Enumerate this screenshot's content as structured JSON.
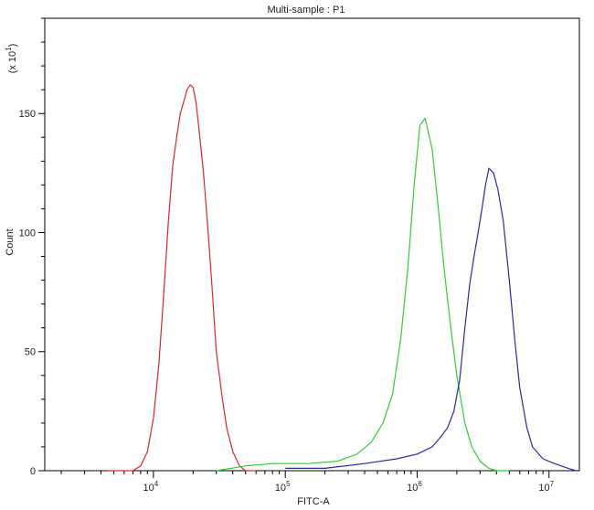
{
  "chart_data": {
    "type": "line",
    "title": "Multi-sample : P1",
    "xlabel": "FITC-A",
    "ylabel": "Count",
    "y_multiplier_label": "(x 10",
    "y_multiplier_exp": "1",
    "x_scale": "log",
    "xlim": [
      1500,
      17000000
    ],
    "ylim": [
      0,
      190
    ],
    "x_ticks": [
      {
        "value": 10000,
        "base": "10",
        "exp": "4"
      },
      {
        "value": 100000,
        "base": "10",
        "exp": "5"
      },
      {
        "value": 1000000,
        "base": "10",
        "exp": "6"
      },
      {
        "value": 10000000,
        "base": "10",
        "exp": "7"
      }
    ],
    "y_ticks": [
      0,
      50,
      100,
      150
    ],
    "y_tick_labels": [
      "0",
      "50",
      "100",
      "150"
    ],
    "grid": false,
    "series": [
      {
        "color": "#d42a2a",
        "x": [
          4500,
          7000,
          8000,
          9000,
          10000,
          11000,
          12000,
          13000,
          14000,
          15000,
          16000,
          17000,
          18000,
          19000,
          20000,
          21000,
          22000,
          24000,
          26000,
          28000,
          30000,
          33000,
          36000,
          40000,
          45000,
          50000,
          60000
        ],
        "values": [
          0,
          0,
          2,
          8,
          22,
          45,
          75,
          105,
          128,
          140,
          150,
          155,
          160,
          162,
          161,
          155,
          145,
          125,
          100,
          75,
          50,
          32,
          18,
          8,
          2,
          0,
          0
        ]
      },
      {
        "color": "#33cc33",
        "x": [
          30000,
          50000,
          80000,
          150000,
          250000,
          350000,
          450000,
          550000,
          650000,
          750000,
          850000,
          950000,
          1050000,
          1150000,
          1300000,
          1450000,
          1600000,
          1800000,
          2000000,
          2300000,
          2600000,
          3000000,
          3500000,
          4000000,
          5000000
        ],
        "values": [
          0,
          2,
          3,
          3,
          4,
          7,
          12,
          20,
          32,
          55,
          85,
          120,
          145,
          148,
          135,
          110,
          85,
          60,
          40,
          20,
          10,
          4,
          1,
          0,
          0
        ]
      },
      {
        "color": "#2b2ba0",
        "x": [
          100000,
          200000,
          400000,
          700000,
          1000000,
          1300000,
          1500000,
          1700000,
          1900000,
          2100000,
          2300000,
          2500000,
          2700000,
          2900000,
          3100000,
          3300000,
          3500000,
          3800000,
          4100000,
          4500000,
          5000000,
          5500000,
          6000000,
          6800000,
          7500000,
          9000000,
          11000000,
          14000000,
          16000000
        ],
        "values": [
          1,
          1,
          3,
          5,
          7,
          10,
          14,
          18,
          25,
          38,
          60,
          78,
          90,
          100,
          110,
          120,
          127,
          125,
          118,
          105,
          80,
          55,
          35,
          18,
          10,
          5,
          3,
          1,
          0
        ]
      }
    ]
  }
}
